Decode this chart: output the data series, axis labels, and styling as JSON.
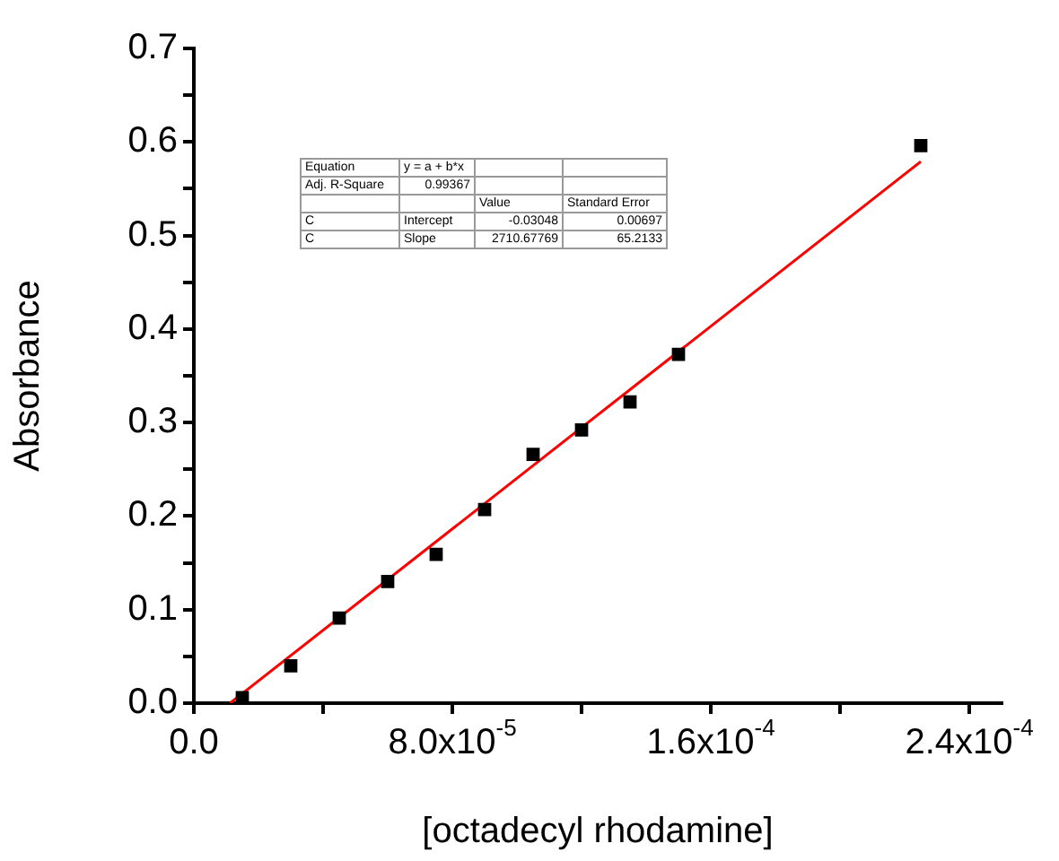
{
  "chart_data": {
    "type": "scatter",
    "xlabel": "[octadecyl rhodamine]",
    "ylabel": "Absorbance",
    "marker": "square",
    "xlim": [
      0,
      0.00025
    ],
    "ylim": [
      0,
      0.7
    ],
    "xticks": [
      {
        "value": 0,
        "label": "0.0"
      },
      {
        "value": 4e-05,
        "label": null
      },
      {
        "value": 8e-05,
        "label": "8.0x10$^{-5}$"
      },
      {
        "value": 0.00012,
        "label": null
      },
      {
        "value": 0.00016,
        "label": "1.6x10$^{-4}$"
      },
      {
        "value": 0.0002,
        "label": null
      },
      {
        "value": 0.00024,
        "label": "2.4x10$^{-4}$"
      }
    ],
    "yticks": [
      {
        "value": 0,
        "label": "0.0"
      },
      {
        "value": 0.05,
        "label": null
      },
      0.1,
      {
        "value": 0.15,
        "label": null
      },
      0.2,
      {
        "value": 0.25,
        "label": null
      },
      0.3,
      {
        "value": 0.35,
        "label": null
      },
      0.4,
      {
        "value": 0.45,
        "label": null
      },
      0.5,
      {
        "value": 0.55,
        "label": null
      },
      0.6,
      {
        "value": 0.65,
        "label": null
      },
      0.7
    ],
    "series": [
      {
        "type": "scatter",
        "color": "#000000",
        "x": [
          1.5e-05,
          3e-05,
          4.5e-05,
          6e-05,
          7.5e-05,
          9e-05,
          0.000105,
          0.00012,
          0.000135,
          0.00015,
          0.000225
        ],
        "values": [
          0.006,
          0.04,
          0.091,
          0.13,
          0.159,
          0.207,
          0.266,
          0.292,
          0.322,
          0.373,
          0.596
        ]
      },
      {
        "type": "line",
        "color": "#ff0000",
        "marker": "none",
        "x": [
          1.12e-05,
          0.000225
        ],
        "values": [
          0,
          0.579
        ]
      }
    ],
    "annotations": [
      "Equation",
      "y = a + b*x",
      "Adj. R-Square",
      "0.99367",
      "Value",
      "Standard Error",
      "C",
      "Intercept",
      "-0.03048",
      "0.00697",
      "C",
      "Slope",
      "2710.67769",
      "65.2133"
    ]
  }
}
